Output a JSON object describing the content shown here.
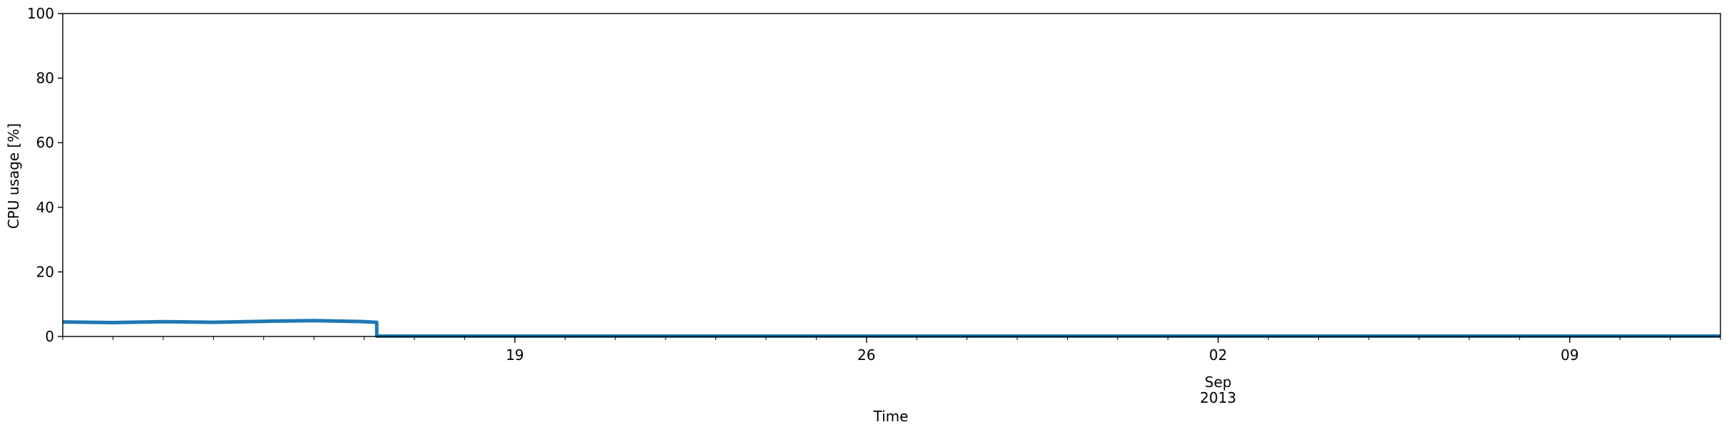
{
  "chart_data": {
    "type": "line",
    "xlabel": "Time",
    "ylabel": "CPU usage [%]",
    "ylim": [
      0,
      100
    ],
    "xlim": [
      "2013-08-10",
      "2013-09-12"
    ],
    "yticks": [
      0,
      20,
      40,
      60,
      80,
      100
    ],
    "xticks": [
      {
        "date": "2013-08-19",
        "label": "19"
      },
      {
        "date": "2013-08-26",
        "label": "26"
      },
      {
        "date": "2013-09-02",
        "label": "02",
        "sublabel": "Sep",
        "sublabel2": "2013"
      },
      {
        "date": "2013-09-09",
        "label": "09"
      }
    ],
    "grid": false,
    "series_color": "#1f77b4",
    "series": [
      {
        "x": [
          "2013-08-10",
          "2013-08-11",
          "2013-08-12",
          "2013-08-13",
          "2013-08-14",
          "2013-08-15",
          "2013-08-16",
          "2013-08-16 06:00",
          "2013-08-16 06:01",
          "2013-08-20",
          "2013-08-25",
          "2013-08-30",
          "2013-09-04",
          "2013-09-08",
          "2013-09-12"
        ],
        "y": [
          4.5,
          4.3,
          4.6,
          4.4,
          4.7,
          4.9,
          4.6,
          4.4,
          0.1,
          0.1,
          0.1,
          0.1,
          0.1,
          0.1,
          0.1
        ]
      }
    ]
  }
}
